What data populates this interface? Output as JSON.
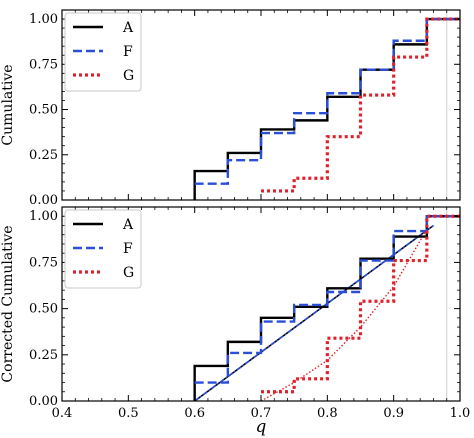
{
  "chart_data": [
    {
      "type": "line",
      "ylabel": "Cumulative",
      "xlim": [
        0.4,
        1.0
      ],
      "ylim": [
        0.0,
        1.05
      ],
      "xticks": [
        "0.4",
        "0.5",
        "0.6",
        "0.7",
        "0.8",
        "0.9",
        "1.0"
      ],
      "yticks": [
        "0.00",
        "0.25",
        "0.50",
        "0.75",
        "1.00"
      ],
      "legend_position": "top-left",
      "series": [
        {
          "name": "A",
          "color": "#000000",
          "style": "solid",
          "steps": [
            [
              0.6,
              0.0
            ],
            [
              0.6,
              0.16
            ],
            [
              0.65,
              0.16
            ],
            [
              0.65,
              0.26
            ],
            [
              0.7,
              0.26
            ],
            [
              0.7,
              0.39
            ],
            [
              0.75,
              0.39
            ],
            [
              0.75,
              0.44
            ],
            [
              0.8,
              0.44
            ],
            [
              0.8,
              0.57
            ],
            [
              0.85,
              0.57
            ],
            [
              0.85,
              0.72
            ],
            [
              0.9,
              0.72
            ],
            [
              0.9,
              0.86
            ],
            [
              0.95,
              0.86
            ],
            [
              0.95,
              1.0
            ],
            [
              1.0,
              1.0
            ]
          ]
        },
        {
          "name": "F",
          "color": "#2a4fd6",
          "style": "dashed",
          "steps": [
            [
              0.6,
              0.09
            ],
            [
              0.65,
              0.09
            ],
            [
              0.65,
              0.22
            ],
            [
              0.7,
              0.22
            ],
            [
              0.7,
              0.37
            ],
            [
              0.75,
              0.37
            ],
            [
              0.75,
              0.48
            ],
            [
              0.8,
              0.48
            ],
            [
              0.8,
              0.59
            ],
            [
              0.85,
              0.59
            ],
            [
              0.85,
              0.72
            ],
            [
              0.9,
              0.72
            ],
            [
              0.9,
              0.88
            ],
            [
              0.95,
              0.88
            ],
            [
              0.95,
              1.0
            ],
            [
              1.0,
              1.0
            ]
          ]
        },
        {
          "name": "G",
          "color": "#e0202a",
          "style": "dotted",
          "steps": [
            [
              0.7,
              0.05
            ],
            [
              0.75,
              0.05
            ],
            [
              0.75,
              0.12
            ],
            [
              0.8,
              0.12
            ],
            [
              0.8,
              0.35
            ],
            [
              0.85,
              0.35
            ],
            [
              0.85,
              0.58
            ],
            [
              0.9,
              0.58
            ],
            [
              0.9,
              0.79
            ],
            [
              0.95,
              0.79
            ],
            [
              0.95,
              1.0
            ],
            [
              1.0,
              1.0
            ]
          ]
        }
      ]
    },
    {
      "type": "line",
      "ylabel": "Corrected Cumulative",
      "xlabel": "q",
      "xlim": [
        0.4,
        1.0
      ],
      "ylim": [
        0.0,
        1.05
      ],
      "xticks": [
        "0.4",
        "0.5",
        "0.6",
        "0.7",
        "0.8",
        "0.9",
        "1.0"
      ],
      "yticks": [
        "0.00",
        "0.25",
        "0.50",
        "0.75",
        "1.00"
      ],
      "legend_position": "top-left",
      "series": [
        {
          "name": "A",
          "color": "#000000",
          "style": "solid",
          "steps": [
            [
              0.6,
              0.0
            ],
            [
              0.6,
              0.19
            ],
            [
              0.65,
              0.19
            ],
            [
              0.65,
              0.32
            ],
            [
              0.7,
              0.32
            ],
            [
              0.7,
              0.45
            ],
            [
              0.75,
              0.45
            ],
            [
              0.75,
              0.51
            ],
            [
              0.8,
              0.51
            ],
            [
              0.8,
              0.61
            ],
            [
              0.85,
              0.61
            ],
            [
              0.85,
              0.77
            ],
            [
              0.9,
              0.77
            ],
            [
              0.9,
              0.89
            ],
            [
              0.95,
              0.89
            ],
            [
              0.95,
              1.0
            ],
            [
              1.0,
              1.0
            ]
          ]
        },
        {
          "name": "F",
          "color": "#2a4fd6",
          "style": "dashed",
          "steps": [
            [
              0.6,
              0.1
            ],
            [
              0.65,
              0.1
            ],
            [
              0.65,
              0.26
            ],
            [
              0.7,
              0.26
            ],
            [
              0.7,
              0.43
            ],
            [
              0.75,
              0.43
            ],
            [
              0.75,
              0.52
            ],
            [
              0.8,
              0.52
            ],
            [
              0.8,
              0.59
            ],
            [
              0.85,
              0.59
            ],
            [
              0.85,
              0.76
            ],
            [
              0.9,
              0.76
            ],
            [
              0.9,
              0.92
            ],
            [
              0.95,
              0.92
            ],
            [
              0.95,
              1.0
            ],
            [
              1.0,
              1.0
            ]
          ]
        },
        {
          "name": "G",
          "color": "#e0202a",
          "style": "dotted",
          "steps": [
            [
              0.7,
              0.05
            ],
            [
              0.75,
              0.05
            ],
            [
              0.75,
              0.12
            ],
            [
              0.8,
              0.12
            ],
            [
              0.8,
              0.34
            ],
            [
              0.85,
              0.34
            ],
            [
              0.85,
              0.54
            ],
            [
              0.9,
              0.54
            ],
            [
              0.9,
              0.76
            ],
            [
              0.95,
              0.76
            ],
            [
              0.95,
              1.0
            ],
            [
              1.0,
              1.0
            ]
          ]
        }
      ],
      "fit_lines": [
        {
          "color": "#000000",
          "style": "solid",
          "points": [
            [
              0.6,
              0.0
            ],
            [
              0.96,
              0.95
            ]
          ]
        },
        {
          "color": "#2a4fd6",
          "style": "dashdot",
          "points": [
            [
              0.6,
              0.0
            ],
            [
              0.96,
              0.95
            ]
          ]
        },
        {
          "color": "#e0202a",
          "style": "dotted",
          "points": [
            [
              0.7,
              0.0
            ],
            [
              0.75,
              0.1
            ],
            [
              0.8,
              0.22
            ],
            [
              0.85,
              0.4
            ],
            [
              0.9,
              0.62
            ],
            [
              0.95,
              0.93
            ]
          ]
        }
      ]
    }
  ]
}
